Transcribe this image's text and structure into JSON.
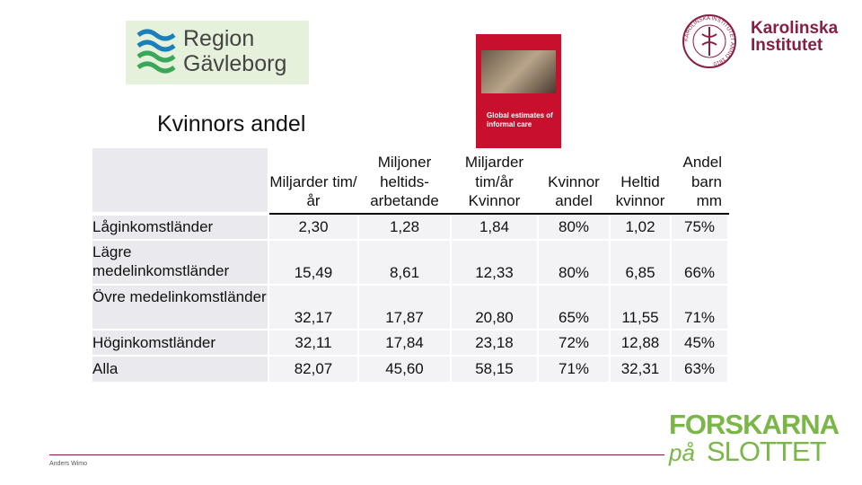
{
  "logos": {
    "region": {
      "line1": "Region",
      "line2": "Gävleborg"
    },
    "karolinska": {
      "line1": "Karolinska",
      "line2": "Institutet",
      "seal": "KAROLINSKA INSTITUTET ANNO 1810"
    },
    "forskarna": {
      "line1": "FORSKARNA",
      "line2a": "på",
      "line2b": "SLOTTET"
    }
  },
  "book": {
    "title": "Global estimates of informal care"
  },
  "title": "Kvinnors andel",
  "table": {
    "headers": [
      "Miljarder tim/år",
      "Miljoner heltids-arbetande",
      "Miljarder tim/år Kvinnor",
      "Kvinnor andel",
      "Heltid kvinnor",
      "Andel barn mm"
    ],
    "rows": [
      [
        "Låginkomstländer",
        "2,30",
        "1,28",
        "1,84",
        "80%",
        "1,02",
        "75%"
      ],
      [
        "Lägre medelinkomstländer",
        "15,49",
        "8,61",
        "12,33",
        "80%",
        "6,85",
        "66%"
      ],
      [
        "Övre medelinkomstländer",
        "32,17",
        "17,87",
        "20,80",
        "65%",
        "11,55",
        "71%"
      ],
      [
        "Höginkomstländer",
        "32,11",
        "17,84",
        "23,18",
        "72%",
        "12,88",
        "45%"
      ],
      [
        "Alla",
        "82,07",
        "45,60",
        "58,15",
        "71%",
        "32,31",
        "63%"
      ]
    ]
  },
  "footer": {
    "author": "Anders Wimo"
  }
}
